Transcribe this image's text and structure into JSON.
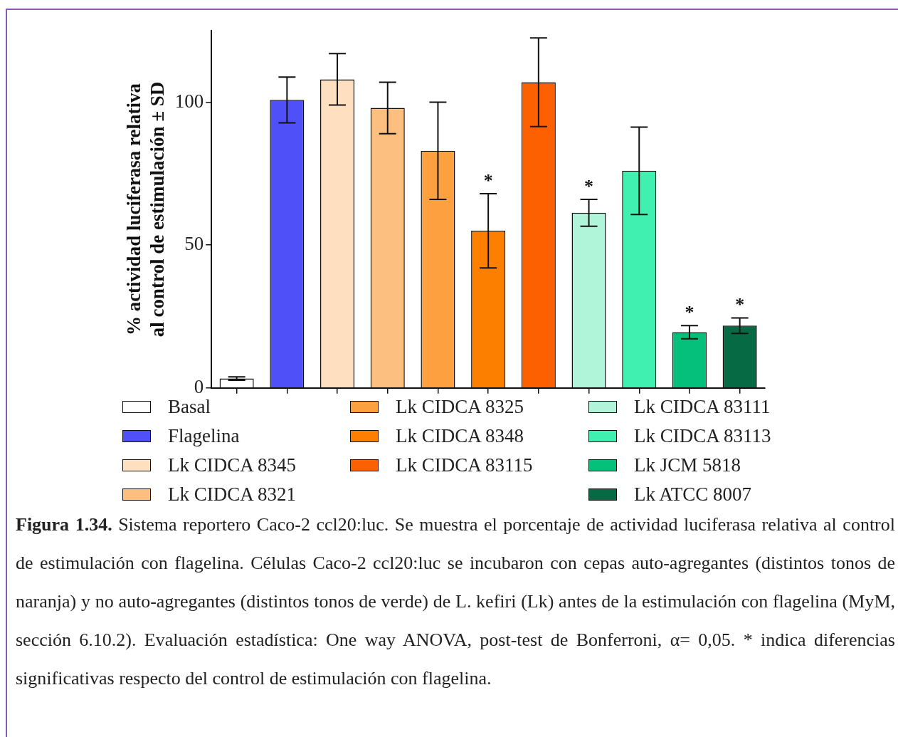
{
  "chart_data": {
    "type": "bar",
    "ylabel": "% actividad luciferasa relativa\nal control de estimulación ± SD",
    "categories": [
      null,
      null,
      null,
      null,
      null,
      null,
      null,
      null,
      null,
      null,
      null
    ],
    "ylim": [
      0,
      125
    ],
    "yticks": [
      0,
      50,
      100
    ],
    "grid": false,
    "legend": "bottom",
    "series": [
      {
        "name": "Basal",
        "color": "#ffffff",
        "values": [
          3.3,
          null,
          null,
          null,
          null,
          null,
          null,
          null,
          null,
          null,
          null
        ],
        "errors": [
          0.6,
          null,
          null,
          null,
          null,
          null,
          null,
          null,
          null,
          null,
          null
        ]
      },
      {
        "name": "Flagelina",
        "color": "#5050f8",
        "values": [
          null,
          100.8,
          null,
          null,
          null,
          null,
          null,
          null,
          null,
          null,
          null
        ],
        "errors": [
          null,
          8,
          null,
          null,
          null,
          null,
          null,
          null,
          null,
          null,
          null
        ]
      },
      {
        "name": "Lk CIDCA 8345",
        "color": "#fee0c0",
        "values": [
          null,
          null,
          108,
          null,
          null,
          null,
          null,
          null,
          null,
          null,
          null
        ],
        "errors": [
          null,
          null,
          9,
          null,
          null,
          null,
          null,
          null,
          null,
          null,
          null
        ]
      },
      {
        "name": "Lk CIDCA 8321",
        "color": "#fdbf80",
        "values": [
          null,
          null,
          null,
          98,
          null,
          null,
          null,
          null,
          null,
          null,
          null
        ],
        "errors": [
          null,
          null,
          null,
          9,
          null,
          null,
          null,
          null,
          null,
          null,
          null
        ]
      },
      {
        "name": "Lk CIDCA 8325",
        "color": "#fda040",
        "values": [
          null,
          null,
          null,
          null,
          83,
          null,
          null,
          null,
          null,
          null,
          null
        ],
        "errors": [
          null,
          null,
          null,
          null,
          17,
          null,
          null,
          null,
          null,
          null,
          null
        ]
      },
      {
        "name": "Lk CIDCA 8348",
        "color": "#fd7f00",
        "values": [
          null,
          null,
          null,
          null,
          null,
          55,
          null,
          null,
          null,
          null,
          null
        ],
        "errors": [
          null,
          null,
          null,
          null,
          null,
          13,
          null,
          null,
          null,
          null,
          null
        ],
        "value_labels": [
          null,
          null,
          null,
          null,
          null,
          "*",
          null,
          null,
          null,
          null,
          null
        ]
      },
      {
        "name": "Lk CIDCA  83115",
        "color": "#fd6000",
        "values": [
          null,
          null,
          null,
          null,
          null,
          null,
          107,
          null,
          null,
          null,
          null
        ],
        "errors": [
          null,
          null,
          null,
          null,
          null,
          null,
          15.5,
          null,
          null,
          null,
          null
        ]
      },
      {
        "name": "Lk CIDCA 83111",
        "color": "#b0f4da",
        "values": [
          null,
          null,
          null,
          null,
          null,
          null,
          null,
          61.3,
          null,
          null,
          null
        ],
        "errors": [
          null,
          null,
          null,
          null,
          null,
          null,
          null,
          4.7,
          null,
          null,
          null
        ],
        "value_labels": [
          null,
          null,
          null,
          null,
          null,
          null,
          null,
          "*",
          null,
          null,
          null
        ]
      },
      {
        "name": "Lk CIDCA 83113",
        "color": "#40f0b0",
        "values": [
          null,
          null,
          null,
          null,
          null,
          null,
          null,
          null,
          76,
          null,
          null
        ],
        "errors": [
          null,
          null,
          null,
          null,
          null,
          null,
          null,
          null,
          15.3,
          null,
          null
        ]
      },
      {
        "name": "Lk JCM 5818",
        "color": "#05c07a",
        "values": [
          null,
          null,
          null,
          null,
          null,
          null,
          null,
          null,
          null,
          19.5,
          null
        ],
        "errors": [
          null,
          null,
          null,
          null,
          null,
          null,
          null,
          null,
          null,
          2.3,
          null
        ],
        "value_labels": [
          null,
          null,
          null,
          null,
          null,
          null,
          null,
          null,
          null,
          "*",
          null
        ]
      },
      {
        "name": "Lk ATCC 8007",
        "color": "#066a44",
        "values": [
          null,
          null,
          null,
          null,
          null,
          null,
          null,
          null,
          null,
          null,
          21.8
        ],
        "errors": [
          null,
          null,
          null,
          null,
          null,
          null,
          null,
          null,
          null,
          null,
          2.7
        ],
        "value_labels": [
          null,
          null,
          null,
          null,
          null,
          null,
          null,
          null,
          null,
          null,
          "*"
        ]
      }
    ],
    "annotations": [
      "Figura 1.34.",
      "Sistema reportero Caco-2 ccl20:luc. Se muestra el porcentaje de actividad luciferasa relativa al control de estimulación con flagelina. Células Caco-2 ccl20:luc se incubaron con cepas auto-agregantes (distintos tonos de naranja) y no auto-agregantes (distintos tonos de verde) de L. kefiri (Lk) antes de la estimulación con flagelina (MyM, sección 6.10.2). Evaluación estadística: One way ANOVA, post-test de Bonferroni, α= 0,05. * indica diferencias significativas respecto del control de estimulación con flagelina."
    ]
  }
}
